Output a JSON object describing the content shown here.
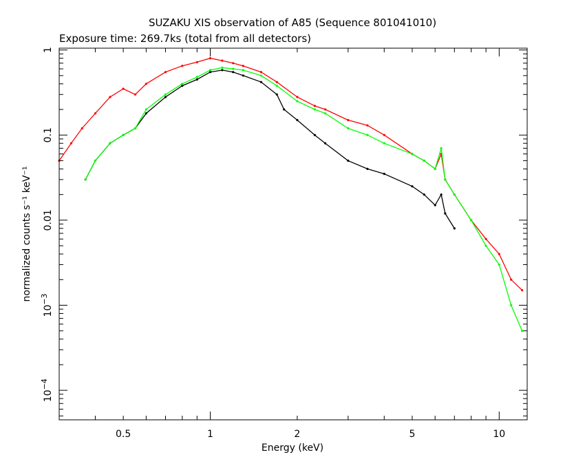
{
  "chart_data": {
    "type": "line",
    "title": "SUZAKU XIS observation of A85 (Sequence 801041010)",
    "subtitle": "Exposure time: 269.7ks (total from all detectors)",
    "xlabel": "Energy (keV)",
    "ylabel": "normalized counts s⁻¹ keV⁻¹",
    "x_scale": "log",
    "y_scale": "log",
    "xlim": [
      0.3,
      12.5
    ],
    "ylim": [
      4.5e-05,
      1.05
    ],
    "x_ticks": [
      {
        "value": 0.5,
        "label": "0.5"
      },
      {
        "value": 1,
        "label": "1"
      },
      {
        "value": 2,
        "label": "2"
      },
      {
        "value": 5,
        "label": "5"
      },
      {
        "value": 10,
        "label": "10"
      }
    ],
    "y_ticks": [
      {
        "value": 1,
        "label": "1"
      },
      {
        "value": 0.1,
        "label": "0.1"
      },
      {
        "value": 0.01,
        "label": "0.01"
      },
      {
        "value": 0.001,
        "base": "10",
        "exp": "−3"
      },
      {
        "value": 0.0001,
        "base": "10",
        "exp": "−4"
      }
    ],
    "grid": false,
    "legend": "none",
    "series": [
      {
        "color": "#ff0000",
        "x": [
          0.3,
          0.33,
          0.36,
          0.4,
          0.45,
          0.5,
          0.55,
          0.6,
          0.7,
          0.8,
          0.9,
          1.0,
          1.1,
          1.2,
          1.3,
          1.5,
          1.7,
          2.0,
          2.3,
          2.5,
          3.0,
          3.5,
          4.0,
          5.0,
          5.5,
          6.0,
          6.3,
          6.5,
          7.0,
          8.0,
          9.0,
          10.0,
          11.0,
          12.0
        ],
        "y": [
          0.05,
          0.08,
          0.12,
          0.18,
          0.28,
          0.35,
          0.3,
          0.4,
          0.55,
          0.65,
          0.72,
          0.8,
          0.75,
          0.7,
          0.65,
          0.55,
          0.42,
          0.28,
          0.22,
          0.2,
          0.15,
          0.13,
          0.1,
          0.06,
          0.05,
          0.04,
          0.06,
          0.03,
          0.02,
          0.01,
          0.006,
          0.004,
          0.002,
          0.0015
        ]
      },
      {
        "color": "#000000",
        "x": [
          0.37,
          0.4,
          0.45,
          0.5,
          0.55,
          0.6,
          0.7,
          0.8,
          0.9,
          1.0,
          1.1,
          1.2,
          1.3,
          1.5,
          1.7,
          1.8,
          2.0,
          2.3,
          2.5,
          3.0,
          3.5,
          4.0,
          5.0,
          5.5,
          6.0,
          6.3,
          6.5,
          7.0
        ],
        "y": [
          0.03,
          0.05,
          0.08,
          0.1,
          0.12,
          0.18,
          0.28,
          0.38,
          0.45,
          0.55,
          0.58,
          0.55,
          0.5,
          0.42,
          0.3,
          0.2,
          0.15,
          0.1,
          0.08,
          0.05,
          0.04,
          0.035,
          0.025,
          0.02,
          0.015,
          0.02,
          0.012,
          0.008
        ]
      },
      {
        "color": "#00ff00",
        "x": [
          0.37,
          0.4,
          0.45,
          0.5,
          0.55,
          0.6,
          0.7,
          0.8,
          0.9,
          1.0,
          1.1,
          1.2,
          1.3,
          1.5,
          1.7,
          2.0,
          2.3,
          2.5,
          3.0,
          3.5,
          4.0,
          5.0,
          5.5,
          6.0,
          6.3,
          6.5,
          7.0,
          8.0,
          9.0,
          10.0,
          11.0,
          12.0
        ],
        "y": [
          0.03,
          0.05,
          0.08,
          0.1,
          0.12,
          0.2,
          0.3,
          0.4,
          0.48,
          0.58,
          0.62,
          0.6,
          0.58,
          0.5,
          0.38,
          0.25,
          0.2,
          0.18,
          0.12,
          0.1,
          0.08,
          0.06,
          0.05,
          0.04,
          0.07,
          0.03,
          0.02,
          0.01,
          0.005,
          0.003,
          0.001,
          0.0005
        ]
      }
    ]
  }
}
